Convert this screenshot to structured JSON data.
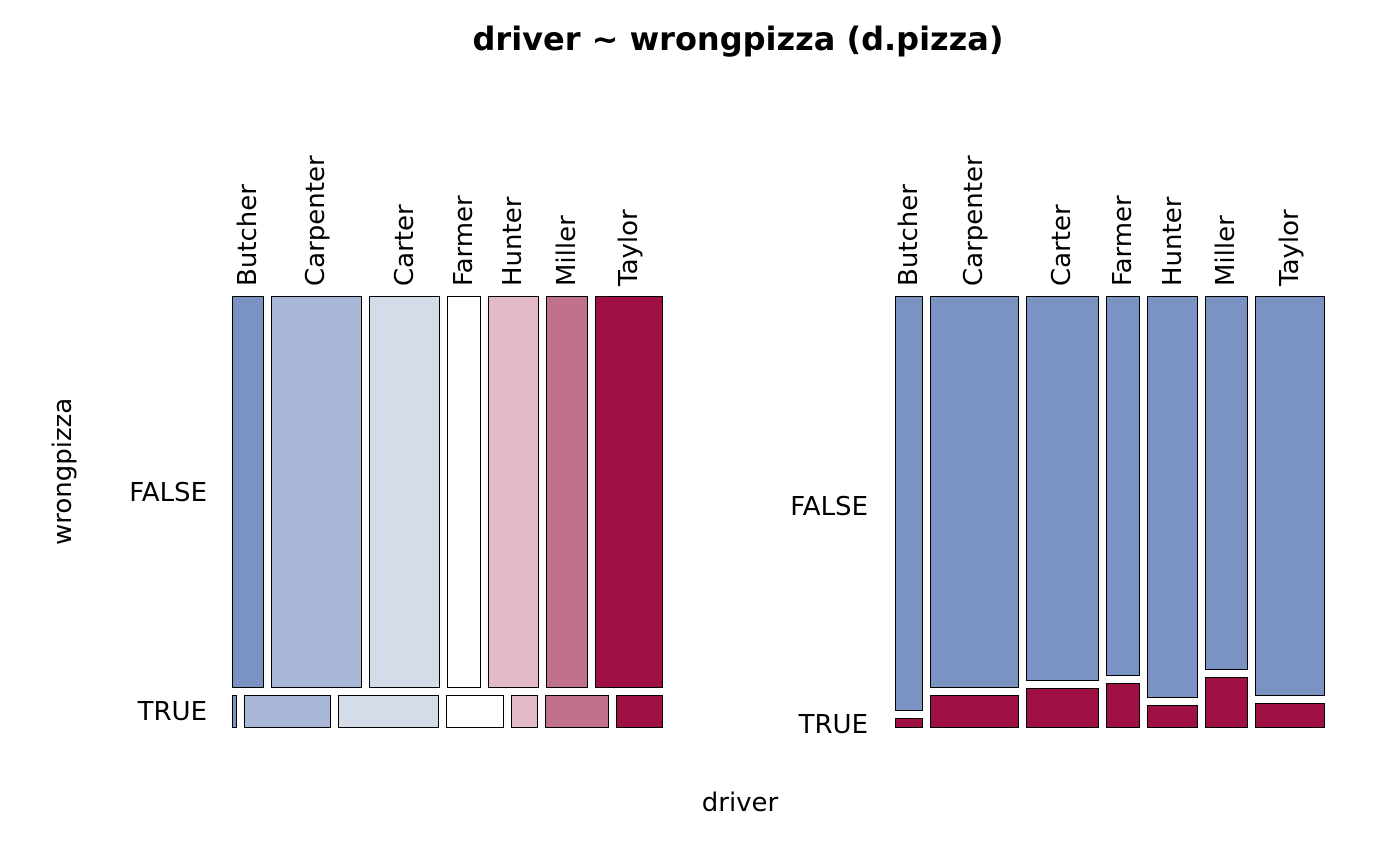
{
  "chart_data": {
    "type": "mosaic",
    "title": "driver ~ wrongpizza (d.pizza)",
    "xlabel": "driver",
    "ylabel": "wrongpizza",
    "categories": [
      "Butcher",
      "Carpenter",
      "Carter",
      "Farmer",
      "Hunter",
      "Miller",
      "Taylor"
    ],
    "row_labels": [
      "FALSE",
      "TRUE"
    ],
    "legend": "none",
    "grid": false,
    "panels": [
      {
        "id": "left",
        "split": "rows by wrongpizza, then columns by driver; cells colored by driver on blue-white-red diverging palette",
        "false_row_height_share": 0.922,
        "true_row_height_share": 0.078,
        "false_col_shares": [
          0.081,
          0.235,
          0.183,
          0.086,
          0.131,
          0.11,
          0.174
        ],
        "true_col_shares": [
          0.013,
          0.223,
          0.26,
          0.148,
          0.07,
          0.164,
          0.122
        ],
        "cell_colors": [
          "#7b93c2",
          "#a9b8d7",
          "#d4dcea",
          "#ffffff",
          "#e4bac8",
          "#c0718e",
          "#9f1144"
        ]
      },
      {
        "id": "right",
        "split": "columns by driver, then rows by wrongpizza (FALSE top blue, TRUE bottom red)",
        "col_shares": [
          0.071,
          0.23,
          0.188,
          0.089,
          0.131,
          0.11,
          0.181
        ],
        "true_fractions": [
          0.024,
          0.078,
          0.094,
          0.106,
          0.054,
          0.12,
          0.059
        ],
        "false_color": "#7b93c2",
        "true_color": "#9f1144"
      }
    ]
  }
}
